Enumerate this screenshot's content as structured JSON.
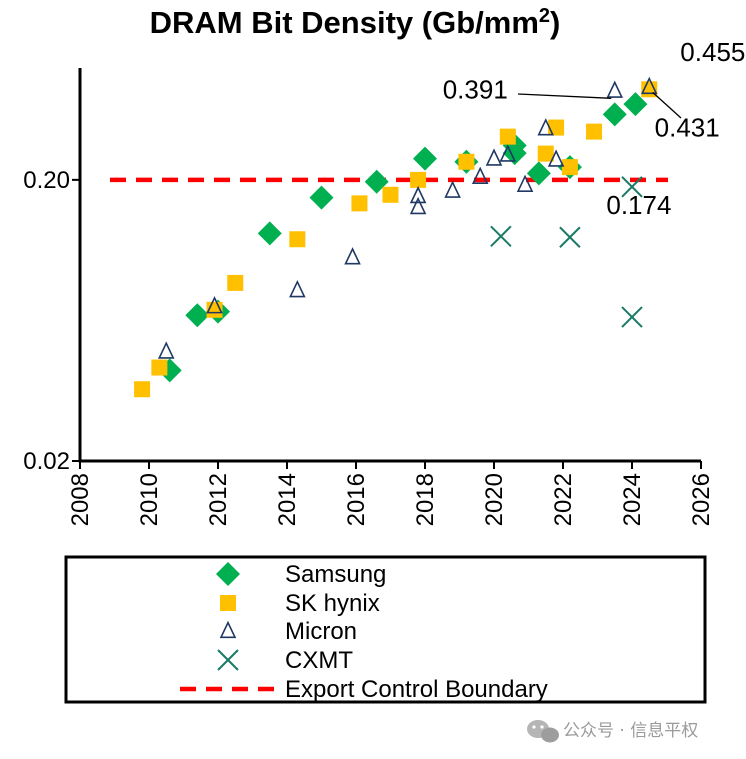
{
  "chart_data": {
    "type": "scatter",
    "title": "DRAM Bit Density (Gb/mm",
    "title_superscript": "2",
    "title_suffix": ")",
    "xlabel": "",
    "ylabel": "",
    "x_scale": "linear",
    "y_scale": "log",
    "xlim": [
      2008,
      2026
    ],
    "ylim": [
      0.02,
      0.5
    ],
    "x_ticks": [
      "2008",
      "2010",
      "2012",
      "2014",
      "2016",
      "2018",
      "2020",
      "2022",
      "2024",
      "2026"
    ],
    "y_ticks": [
      "0.20",
      "0.02"
    ],
    "grid": false,
    "legend_position": "bottom",
    "series": [
      {
        "name": "Samsung",
        "marker": "diamond",
        "color": "#00b050",
        "x": [
          2010.6,
          2011.4,
          2012.0,
          2013.5,
          2015.0,
          2016.6,
          2018.0,
          2019.2,
          2020.6,
          2020.6,
          2021.3,
          2022.2,
          2023.5,
          2024.1
        ],
        "y": [
          0.042,
          0.066,
          0.068,
          0.129,
          0.173,
          0.197,
          0.238,
          0.232,
          0.265,
          0.249,
          0.211,
          0.222,
          0.342,
          0.372
        ]
      },
      {
        "name": "SK hynix",
        "marker": "square",
        "color": "#ffc000",
        "x": [
          2009.8,
          2010.3,
          2011.9,
          2012.5,
          2014.3,
          2016.1,
          2017.0,
          2017.8,
          2019.2,
          2020.4,
          2021.5,
          2021.8,
          2022.2,
          2022.9,
          2024.5
        ],
        "y": [
          0.036,
          0.043,
          0.069,
          0.086,
          0.123,
          0.165,
          0.177,
          0.2,
          0.232,
          0.285,
          0.248,
          0.307,
          0.222,
          0.297,
          0.42
        ]
      },
      {
        "name": "Micron",
        "marker": "triangle",
        "color": "#1f3864",
        "x": [
          2010.5,
          2011.9,
          2014.3,
          2015.9,
          2017.8,
          2017.8,
          2018.8,
          2019.6,
          2020.0,
          2020.4,
          2020.9,
          2021.5,
          2021.8,
          2023.5,
          2024.5
        ],
        "y": [
          0.049,
          0.071,
          0.081,
          0.106,
          0.175,
          0.16,
          0.183,
          0.205,
          0.238,
          0.246,
          0.192,
          0.305,
          0.236,
          0.415,
          0.428
        ]
      },
      {
        "name": "CXMT",
        "marker": "x",
        "color": "#1b7a66",
        "x": [
          2020.2,
          2022.2,
          2024.0,
          2024.0
        ],
        "y": [
          0.126,
          0.125,
          0.065,
          0.189
        ]
      }
    ],
    "reference_lines": [
      {
        "name": "Export Control Boundary",
        "y": 0.2,
        "color": "#ff0000",
        "style": "dashed"
      }
    ],
    "annotations": [
      {
        "text": "0.455",
        "x": 2025.4,
        "y": 0.53
      },
      {
        "text": "0.391",
        "x": 2020.4,
        "y": 0.39
      },
      {
        "text": "0.431",
        "x": 2025.6,
        "y": 0.285
      },
      {
        "text": "0.174",
        "x": 2024.2,
        "y": 0.151
      }
    ]
  },
  "watermark": {
    "text": "公众号 · 信息平权"
  }
}
